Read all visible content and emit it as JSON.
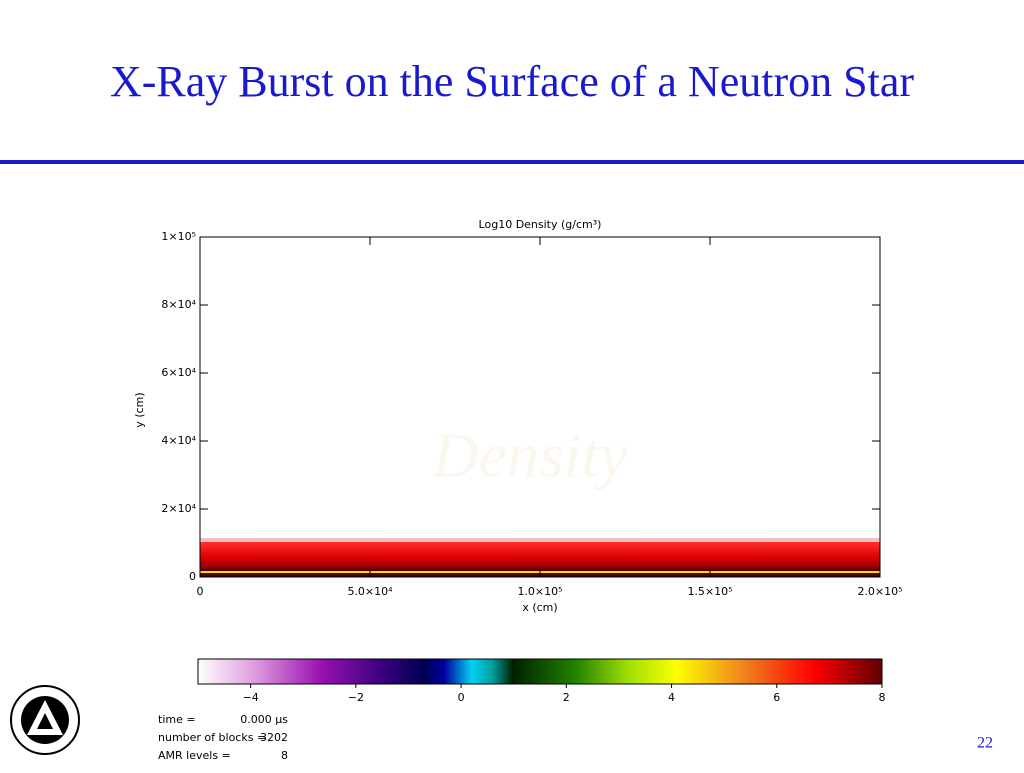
{
  "slide_title": "X-Ray Burst on the Surface of a Neutron Star",
  "page_number": "22",
  "chart_data": {
    "type": "image",
    "title": "Log10 Density (g/cm³)",
    "watermark": "Density",
    "xlabel": "x (cm)",
    "ylabel": "y (cm)",
    "xlim": [
      0,
      200000
    ],
    "ylim": [
      0,
      100000
    ],
    "xticks": [
      0,
      {
        "value": 50000,
        "label": "5.0×10⁴"
      },
      {
        "value": 100000,
        "label": "1.0×10⁵"
      },
      {
        "value": 150000,
        "label": "1.5×10⁵"
      },
      {
        "value": 200000,
        "label": "2.0×10⁵"
      }
    ],
    "yticks": [
      0,
      {
        "value": 20000,
        "label": "2×10⁴"
      },
      {
        "value": 40000,
        "label": "4×10⁴"
      },
      {
        "value": 60000,
        "label": "6×10⁴"
      },
      {
        "value": 80000,
        "label": "8×10⁴"
      },
      {
        "value": 100000,
        "label": "1×10⁵"
      }
    ],
    "colorbar": {
      "lim": [
        -5,
        8
      ],
      "ticks": [
        {
          "value": -4,
          "label": "−4"
        },
        {
          "value": -2,
          "label": "−2"
        },
        0,
        2,
        4,
        6,
        8
      ]
    },
    "info": [
      [
        "time =",
        "0.000 μs"
      ],
      [
        "number of blocks =",
        "3202"
      ],
      [
        "AMR levels =",
        "8"
      ]
    ]
  }
}
